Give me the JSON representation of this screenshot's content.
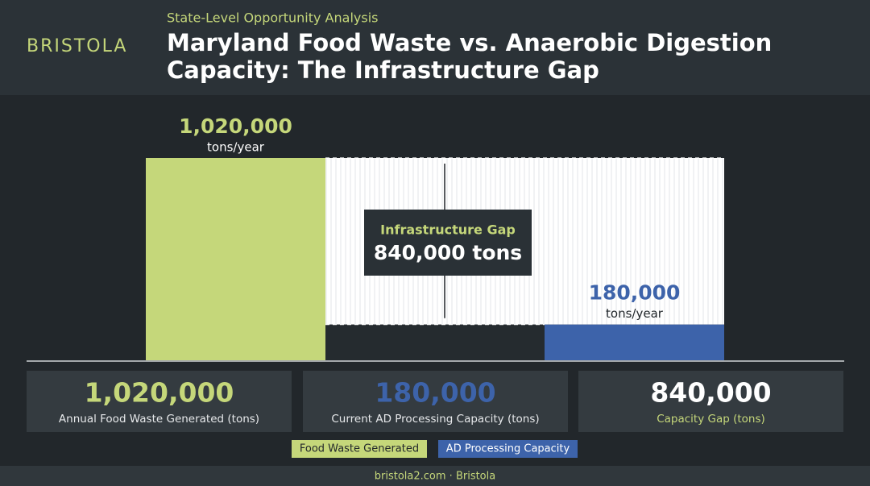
{
  "brand": "BRISTOLA",
  "subtitle": "State-Level Opportunity Analysis",
  "title": [
    "Maryland Food Waste vs. Anaerobic Digestion",
    "Capacity: The Infrastructure Gap"
  ],
  "chart_data": {
    "type": "bar",
    "unit": "tons/year",
    "ylim": [
      0,
      1020000
    ],
    "series": [
      {
        "name": "Food Waste Generated",
        "color": "#c5d77a",
        "values": [
          1020000
        ],
        "value_labels": [
          "1,020,000"
        ]
      },
      {
        "name": "AD Processing Capacity",
        "color": "#3d63aa",
        "values": [
          180000
        ],
        "value_labels": [
          "180,000"
        ]
      }
    ],
    "annotation": {
      "title": "Infrastructure Gap",
      "value": 840000,
      "label": "840,000 tons"
    }
  },
  "cards": [
    {
      "value_label": "1,020,000",
      "label": "Annual Food Waste Generated (tons)"
    },
    {
      "value_label": "180,000",
      "label": "Current AD Processing Capacity (tons)"
    },
    {
      "value_label": "840,000",
      "label": "Capacity Gap (tons)"
    }
  ],
  "footer": "bristola2.com · Bristola"
}
